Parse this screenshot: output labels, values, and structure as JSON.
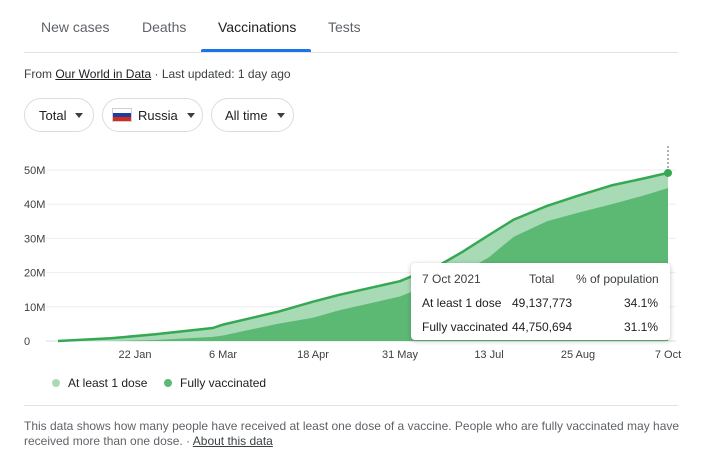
{
  "tabs": [
    {
      "label": "New cases"
    },
    {
      "label": "Deaths"
    },
    {
      "label": "Vaccinations",
      "active": true
    },
    {
      "label": "Tests"
    }
  ],
  "source": {
    "prefix": "From ",
    "link": "Our World in Data",
    "updated": " · Last updated: 1 day ago"
  },
  "filters": {
    "metric": "Total",
    "country": "Russia",
    "range": "All time"
  },
  "colors": {
    "at_least_one_dose": "#a8dab5",
    "fully_vaccinated": "#5bb974",
    "line": "#34a853",
    "accent": "#1a73e8"
  },
  "chart_data": {
    "type": "area",
    "x_ticks": [
      "22 Jan",
      "6 Mar",
      "18 Apr",
      "31 May",
      "13 Jul",
      "25 Aug",
      "7 Oct"
    ],
    "y_ticks": [
      "0",
      "10M",
      "20M",
      "30M",
      "40M",
      "50M"
    ],
    "ylim": [
      0,
      50000000
    ],
    "grid": true,
    "legend_position": "bottom-left",
    "x": [
      "2020-12-15",
      "2021-01-10",
      "2021-02-01",
      "2021-03-01",
      "2021-03-06",
      "2021-04-01",
      "2021-04-18",
      "2021-05-01",
      "2021-05-31",
      "2021-06-10",
      "2021-06-20",
      "2021-06-30",
      "2021-07-13",
      "2021-07-25",
      "2021-08-10",
      "2021-08-25",
      "2021-09-10",
      "2021-09-25",
      "2021-10-07"
    ],
    "series": [
      {
        "name": "At least 1 dose",
        "values": [
          0,
          800000,
          2000000,
          3800000,
          4800000,
          8500000,
          11500000,
          13500000,
          17500000,
          20000000,
          22500000,
          26000000,
          31000000,
          35500000,
          39500000,
          42500000,
          45500000,
          47500000,
          49137773
        ]
      },
      {
        "name": "Fully vaccinated",
        "values": [
          0,
          0,
          300000,
          1200000,
          1600000,
          5000000,
          6800000,
          9000000,
          13000000,
          15500000,
          18000000,
          20000000,
          24500000,
          30500000,
          35000000,
          37500000,
          40000000,
          42500000,
          44750694
        ]
      }
    ]
  },
  "tooltip": {
    "date": "7 Oct 2021",
    "col_total": "Total",
    "col_percent": "% of population",
    "rows": [
      {
        "label": "At least 1 dose",
        "total": "49,137,773",
        "percent": "34.1%"
      },
      {
        "label": "Fully vaccinated",
        "total": "44,750,694",
        "percent": "31.1%"
      }
    ]
  },
  "legend": {
    "at_least_one_dose": "At least 1 dose",
    "fully_vaccinated": "Fully vaccinated"
  },
  "note": {
    "text": "This data shows how many people have received at least one dose of a vaccine. People who are fully vaccinated may have received more than one dose.",
    "separator": " · ",
    "link": "About this data"
  }
}
